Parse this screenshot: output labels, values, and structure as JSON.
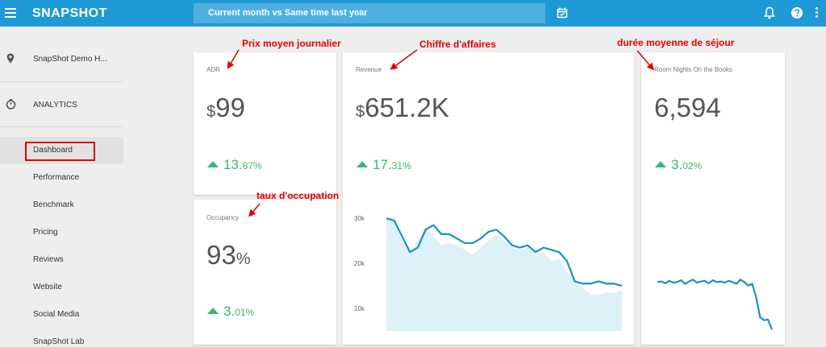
{
  "header": {
    "brand": "SNAPSHOT",
    "period": "Current month vs Same time last year",
    "icons": [
      "hamburger-menu-icon",
      "calendar-icon",
      "bell-icon",
      "help-icon",
      "more-vert-icon"
    ],
    "colors": {
      "bar": "#1e9ad6"
    }
  },
  "sidebar": {
    "property": "SnapShot Demo H...",
    "section": "ANALYTICS",
    "items": [
      "Dashboard",
      "Performance",
      "Benchmark",
      "Pricing",
      "Reviews",
      "Website",
      "Social Media",
      "SnapShot Lab"
    ],
    "active_index": 0
  },
  "cards": {
    "adr": {
      "title": "ADR",
      "prefix": "$",
      "value": "99",
      "change_main": "13.",
      "change_dec": "87%"
    },
    "occupancy": {
      "title": "Occupancy",
      "value": "93",
      "suffix": "%",
      "change_main": "3.",
      "change_dec": "01%"
    },
    "revenue": {
      "title": "Revenue",
      "prefix": "$",
      "value": "651.2K",
      "change_main": "17.",
      "change_dec": "31%"
    },
    "room_nights": {
      "title": "Room Nights On the Books",
      "value": "6,594",
      "change_main": "3.",
      "change_dec": "02%"
    }
  },
  "annotations": {
    "adr": "Prix moyen journalier",
    "revenue": "Chiffre d'affaires",
    "room_nights": "durée moyenne de séjour",
    "occupancy": "taux d'occupation"
  },
  "chart_data": [
    {
      "type": "area",
      "ylim": [
        5000,
        32000
      ],
      "yticks": [
        "30k",
        "20k",
        "10k"
      ],
      "ytick_values": [
        30000,
        20000,
        10000
      ],
      "x": [
        0,
        1,
        2,
        3,
        4,
        5,
        6,
        7,
        8,
        9,
        10,
        11,
        12,
        13,
        14,
        15,
        16,
        17,
        18,
        19,
        20,
        21,
        22,
        23,
        24,
        25,
        26,
        27,
        28,
        29,
        30
      ],
      "series": [
        {
          "values": [
            30000,
            29500,
            25000,
            22500,
            25000,
            28000,
            26000,
            24000,
            24500,
            24000,
            23000,
            22000,
            23500,
            25000,
            26500,
            25000,
            23500,
            23000,
            23500,
            22000,
            22500,
            20500,
            21000,
            18000,
            16500,
            14500,
            13000,
            13000,
            13500,
            13500,
            14000
          ],
          "color": "#ddf1f8"
        },
        {
          "values": [
            30000,
            29500,
            26000,
            22500,
            23500,
            27500,
            28500,
            26500,
            26500,
            25500,
            24500,
            24500,
            25500,
            27000,
            27500,
            26000,
            24000,
            23500,
            24000,
            22500,
            23500,
            23000,
            22500,
            20500,
            16000,
            15500,
            15500,
            16000,
            15500,
            15500,
            15000
          ],
          "color": "#1a8fcb"
        }
      ]
    },
    {
      "type": "line",
      "ylim": [
        0,
        10
      ],
      "x": [
        0,
        1,
        2,
        3,
        4,
        5,
        6,
        7,
        8,
        9,
        10,
        11,
        12,
        13,
        14,
        15,
        16,
        17,
        18,
        19,
        20,
        21,
        22,
        23,
        24,
        25,
        26,
        27,
        28,
        29
      ],
      "series": [
        {
          "values": [
            8.2,
            8.3,
            8.0,
            8.4,
            8.1,
            8.2,
            8.5,
            7.9,
            8.3,
            8.6,
            8.1,
            8.3,
            8.4,
            8.0,
            8.5,
            8.2,
            8.3,
            8.1,
            8.4,
            8.2,
            7.9,
            8.6,
            8.2,
            7.6,
            7.9,
            5.6,
            2.3,
            1.8,
            1.9,
            0.2
          ],
          "color": "#1a8fcb"
        }
      ]
    }
  ]
}
